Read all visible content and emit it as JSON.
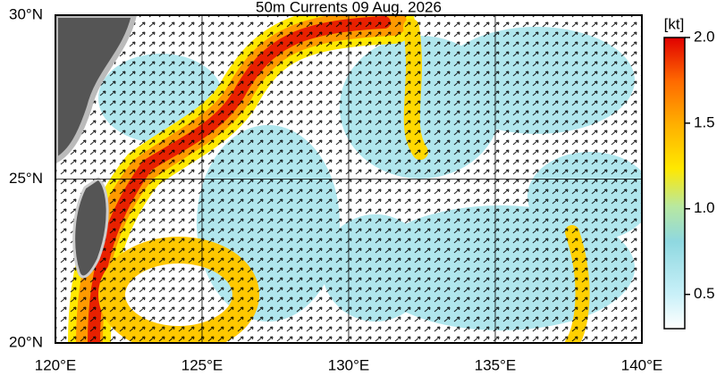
{
  "chart_data": {
    "type": "map",
    "title": "50m Currents  09 Aug. 2026",
    "xlim": [
      120,
      140
    ],
    "ylim": [
      20,
      30
    ],
    "xticks": [
      {
        "value": 120,
        "label": "120°E"
      },
      {
        "value": 125,
        "label": "125°E"
      },
      {
        "value": 130,
        "label": "130°E"
      },
      {
        "value": 135,
        "label": "135°E"
      },
      {
        "value": 140,
        "label": "140°E"
      }
    ],
    "yticks": [
      {
        "value": 20,
        "label": "20°N"
      },
      {
        "value": 25,
        "label": "25°N"
      },
      {
        "value": 30,
        "label": "30°N"
      }
    ],
    "grid": true,
    "colorbar": {
      "label": "[kt]",
      "clim": [
        0.3,
        2.0
      ],
      "ticks": [
        {
          "value": 0.5,
          "label": "0.5"
        },
        {
          "value": 1.0,
          "label": "1.0"
        },
        {
          "value": 1.5,
          "label": "1.5"
        },
        {
          "value": 2.0,
          "label": "2.0"
        }
      ]
    }
  }
}
